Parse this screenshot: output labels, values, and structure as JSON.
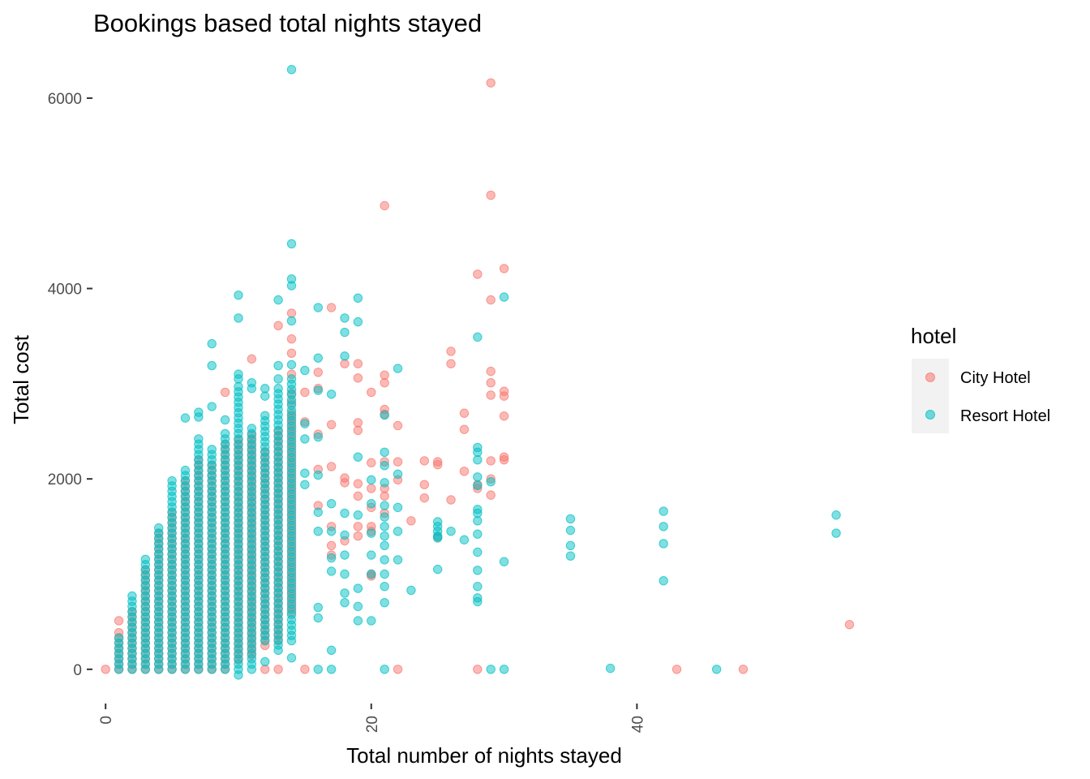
{
  "chart_data": {
    "type": "scatter",
    "title": "Bookings based total nights stayed",
    "xlabel": "Total number of nights stayed",
    "ylabel": "Total cost",
    "xlim": [
      -0.5,
      57.5
    ],
    "ylim": [
      -300,
      6400
    ],
    "x_ticks": [
      0,
      20,
      40
    ],
    "y_ticks": [
      0,
      2000,
      4000,
      6000
    ],
    "grid": false,
    "legend": {
      "title": "hotel",
      "placement": "right",
      "entries": [
        "City Hotel",
        "Resort Hotel"
      ]
    },
    "series": [
      {
        "name": "City Hotel",
        "color": "#F8766D",
        "dense_columns": [
          {
            "x": 0,
            "ymin": 0,
            "ymax": 10
          },
          {
            "x": 1,
            "ymin": 0,
            "ymax": 430
          },
          {
            "x": 2,
            "ymin": 0,
            "ymax": 650
          },
          {
            "x": 3,
            "ymin": 0,
            "ymax": 1050
          },
          {
            "x": 4,
            "ymin": 0,
            "ymax": 1450
          },
          {
            "x": 5,
            "ymin": 0,
            "ymax": 1700
          },
          {
            "x": 6,
            "ymin": 0,
            "ymax": 2000
          },
          {
            "x": 7,
            "ymin": 0,
            "ymax": 2200
          },
          {
            "x": 8,
            "ymin": 0,
            "ymax": 2150
          },
          {
            "x": 9,
            "ymin": 0,
            "ymax": 2400
          },
          {
            "x": 10,
            "ymin": 100,
            "ymax": 2450
          },
          {
            "x": 11,
            "ymin": 150,
            "ymax": 2500
          },
          {
            "x": 12,
            "ymin": 250,
            "ymax": 2300
          },
          {
            "x": 13,
            "ymin": 300,
            "ymax": 2500
          },
          {
            "x": 14,
            "ymin": 600,
            "ymax": 2700
          }
        ],
        "points": [
          [
            1,
            510
          ],
          [
            9,
            2910
          ],
          [
            11,
            3260
          ],
          [
            13,
            3610
          ],
          [
            14,
            3740
          ],
          [
            14,
            3470
          ],
          [
            14,
            3320
          ],
          [
            14,
            3100
          ],
          [
            14,
            2900
          ],
          [
            14,
            2800
          ],
          [
            15,
            2910
          ],
          [
            15,
            2600
          ],
          [
            16,
            3120
          ],
          [
            16,
            2950
          ],
          [
            16,
            2470
          ],
          [
            16,
            2100
          ],
          [
            16,
            1720
          ],
          [
            17,
            3800
          ],
          [
            17,
            2570
          ],
          [
            17,
            2130
          ],
          [
            17,
            1500
          ],
          [
            17,
            1300
          ],
          [
            17,
            1200
          ],
          [
            18,
            3210
          ],
          [
            18,
            2010
          ],
          [
            18,
            1960
          ],
          [
            18,
            1350
          ],
          [
            19,
            3210
          ],
          [
            19,
            3060
          ],
          [
            19,
            2590
          ],
          [
            19,
            2510
          ],
          [
            19,
            1950
          ],
          [
            19,
            1820
          ],
          [
            19,
            1500
          ],
          [
            19,
            1400
          ],
          [
            20,
            2910
          ],
          [
            20,
            2170
          ],
          [
            20,
            1900
          ],
          [
            20,
            1700
          ],
          [
            20,
            1500
          ],
          [
            20,
            1450
          ],
          [
            20,
            1000
          ],
          [
            20,
            980
          ],
          [
            21,
            4870
          ],
          [
            21,
            3090
          ],
          [
            21,
            3010
          ],
          [
            21,
            2730
          ],
          [
            21,
            2680
          ],
          [
            21,
            2180
          ],
          [
            21,
            1900
          ],
          [
            21,
            1820
          ],
          [
            21,
            1640
          ],
          [
            22,
            2560
          ],
          [
            22,
            2180
          ],
          [
            22,
            1990
          ],
          [
            23,
            1560
          ],
          [
            24,
            2190
          ],
          [
            24,
            1940
          ],
          [
            24,
            1800
          ],
          [
            25,
            2180
          ],
          [
            25,
            2150
          ],
          [
            25,
            1390
          ],
          [
            26,
            3340
          ],
          [
            26,
            3210
          ],
          [
            26,
            1780
          ],
          [
            27,
            2690
          ],
          [
            27,
            2520
          ],
          [
            27,
            2080
          ],
          [
            28,
            4150
          ],
          [
            28,
            1940
          ],
          [
            28,
            1900
          ],
          [
            29,
            6160
          ],
          [
            29,
            4980
          ],
          [
            29,
            3880
          ],
          [
            29,
            3130
          ],
          [
            29,
            3010
          ],
          [
            29,
            2880
          ],
          [
            29,
            2190
          ],
          [
            29,
            2000
          ],
          [
            29,
            1830
          ],
          [
            30,
            4210
          ],
          [
            30,
            2920
          ],
          [
            30,
            2870
          ],
          [
            30,
            2660
          ],
          [
            30,
            2230
          ],
          [
            30,
            2200
          ],
          [
            56,
            470
          ],
          [
            12,
            0
          ],
          [
            13,
            0
          ],
          [
            15,
            0
          ],
          [
            22,
            0
          ],
          [
            28,
            0
          ],
          [
            43,
            0
          ],
          [
            48,
            0
          ]
        ]
      },
      {
        "name": "Resort Hotel",
        "color": "#00BFC4",
        "dense_columns": [
          {
            "x": 1,
            "ymin": 0,
            "ymax": 380
          },
          {
            "x": 2,
            "ymin": 0,
            "ymax": 770
          },
          {
            "x": 3,
            "ymin": 0,
            "ymax": 1180
          },
          {
            "x": 4,
            "ymin": 0,
            "ymax": 1510
          },
          {
            "x": 5,
            "ymin": 0,
            "ymax": 2030
          },
          {
            "x": 6,
            "ymin": 0,
            "ymax": 2140
          },
          {
            "x": 7,
            "ymin": 0,
            "ymax": 2450
          },
          {
            "x": 8,
            "ymin": 0,
            "ymax": 2350
          },
          {
            "x": 9,
            "ymin": 0,
            "ymax": 2500
          },
          {
            "x": 10,
            "ymin": 0,
            "ymax": 2980
          },
          {
            "x": 11,
            "ymin": 0,
            "ymax": 2580
          },
          {
            "x": 12,
            "ymin": 300,
            "ymax": 2700
          },
          {
            "x": 13,
            "ymin": 200,
            "ymax": 2950
          },
          {
            "x": 14,
            "ymin": 300,
            "ymax": 3060
          }
        ],
        "points": [
          [
            14,
            6300
          ],
          [
            14,
            4470
          ],
          [
            14,
            4100
          ],
          [
            14,
            4030
          ],
          [
            14,
            3660
          ],
          [
            14,
            3200
          ],
          [
            10,
            3930
          ],
          [
            10,
            3690
          ],
          [
            10,
            3100
          ],
          [
            10,
            3050
          ],
          [
            8,
            3420
          ],
          [
            8,
            3190
          ],
          [
            8,
            2760
          ],
          [
            6,
            2640
          ],
          [
            7,
            2700
          ],
          [
            7,
            2650
          ],
          [
            9,
            2620
          ],
          [
            11,
            3010
          ],
          [
            11,
            2950
          ],
          [
            12,
            2950
          ],
          [
            12,
            2870
          ],
          [
            13,
            3880
          ],
          [
            13,
            3190
          ],
          [
            13,
            3050
          ],
          [
            15,
            3140
          ],
          [
            15,
            2580
          ],
          [
            15,
            2420
          ],
          [
            15,
            2060
          ],
          [
            15,
            1940
          ],
          [
            16,
            3800
          ],
          [
            16,
            3270
          ],
          [
            16,
            2930
          ],
          [
            16,
            2440
          ],
          [
            16,
            2040
          ],
          [
            16,
            1650
          ],
          [
            16,
            1450
          ],
          [
            16,
            650
          ],
          [
            16,
            540
          ],
          [
            17,
            2890
          ],
          [
            17,
            1740
          ],
          [
            17,
            1450
          ],
          [
            17,
            1170
          ],
          [
            17,
            1030
          ],
          [
            17,
            200
          ],
          [
            18,
            3690
          ],
          [
            18,
            3540
          ],
          [
            18,
            3290
          ],
          [
            18,
            1640
          ],
          [
            18,
            1410
          ],
          [
            18,
            1200
          ],
          [
            18,
            1000
          ],
          [
            18,
            800
          ],
          [
            18,
            700
          ],
          [
            19,
            3900
          ],
          [
            19,
            3650
          ],
          [
            19,
            2230
          ],
          [
            19,
            1620
          ],
          [
            19,
            850
          ],
          [
            19,
            660
          ],
          [
            19,
            510
          ],
          [
            20,
            1990
          ],
          [
            20,
            1740
          ],
          [
            20,
            1430
          ],
          [
            20,
            1200
          ],
          [
            20,
            1000
          ],
          [
            20,
            510
          ],
          [
            21,
            2670
          ],
          [
            21,
            2280
          ],
          [
            21,
            2140
          ],
          [
            21,
            1960
          ],
          [
            21,
            1720
          ],
          [
            21,
            1600
          ],
          [
            21,
            1500
          ],
          [
            21,
            1400
          ],
          [
            21,
            1300
          ],
          [
            21,
            1150
          ],
          [
            21,
            1000
          ],
          [
            21,
            870
          ],
          [
            21,
            700
          ],
          [
            22,
            3160
          ],
          [
            22,
            2050
          ],
          [
            22,
            1700
          ],
          [
            22,
            1450
          ],
          [
            22,
            1150
          ],
          [
            23,
            830
          ],
          [
            25,
            1550
          ],
          [
            25,
            1500
          ],
          [
            25,
            1450
          ],
          [
            25,
            1400
          ],
          [
            25,
            1380
          ],
          [
            25,
            1050
          ],
          [
            26,
            1450
          ],
          [
            27,
            1360
          ],
          [
            28,
            3490
          ],
          [
            28,
            2330
          ],
          [
            28,
            2280
          ],
          [
            28,
            2200
          ],
          [
            28,
            2020
          ],
          [
            28,
            1930
          ],
          [
            28,
            1680
          ],
          [
            28,
            1640
          ],
          [
            28,
            1560
          ],
          [
            28,
            1420
          ],
          [
            28,
            1230
          ],
          [
            28,
            1040
          ],
          [
            28,
            870
          ],
          [
            28,
            750
          ],
          [
            28,
            710
          ],
          [
            29,
            1970
          ],
          [
            30,
            3910
          ],
          [
            30,
            1130
          ],
          [
            35,
            1580
          ],
          [
            35,
            1460
          ],
          [
            35,
            1300
          ],
          [
            35,
            1190
          ],
          [
            42,
            1660
          ],
          [
            42,
            1500
          ],
          [
            42,
            1320
          ],
          [
            42,
            930
          ],
          [
            55,
            1620
          ],
          [
            55,
            1430
          ],
          [
            10,
            -60
          ],
          [
            12,
            80
          ],
          [
            14,
            120
          ],
          [
            16,
            0
          ],
          [
            17,
            0
          ],
          [
            21,
            0
          ],
          [
            29,
            0
          ],
          [
            30,
            0
          ],
          [
            38,
            10
          ],
          [
            46,
            0
          ]
        ]
      }
    ]
  }
}
